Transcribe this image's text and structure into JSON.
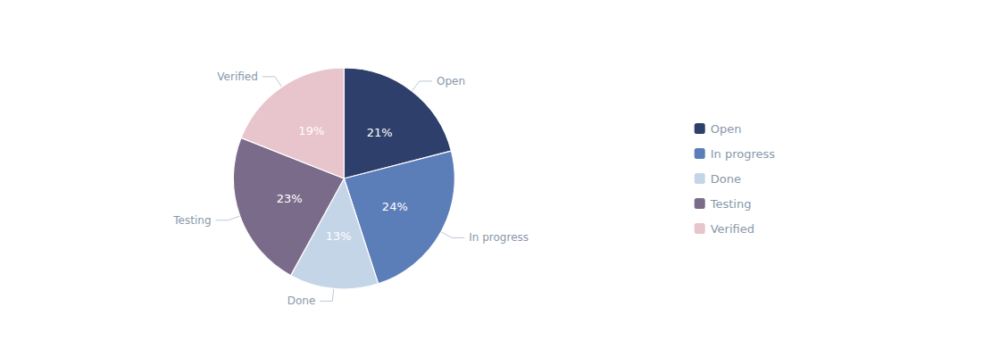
{
  "chart_data": {
    "type": "pie",
    "categories": [
      "Open",
      "In progress",
      "Done",
      "Testing",
      "Verified"
    ],
    "values": [
      21,
      24,
      13,
      23,
      19
    ],
    "value_labels": [
      "21%",
      "24%",
      "13%",
      "23%",
      "19%"
    ],
    "colors": [
      "#2E3F6B",
      "#5B7DB8",
      "#C5D5E8",
      "#7B6B8A",
      "#E8C4CC"
    ],
    "data_labels": true,
    "legend": "right"
  }
}
